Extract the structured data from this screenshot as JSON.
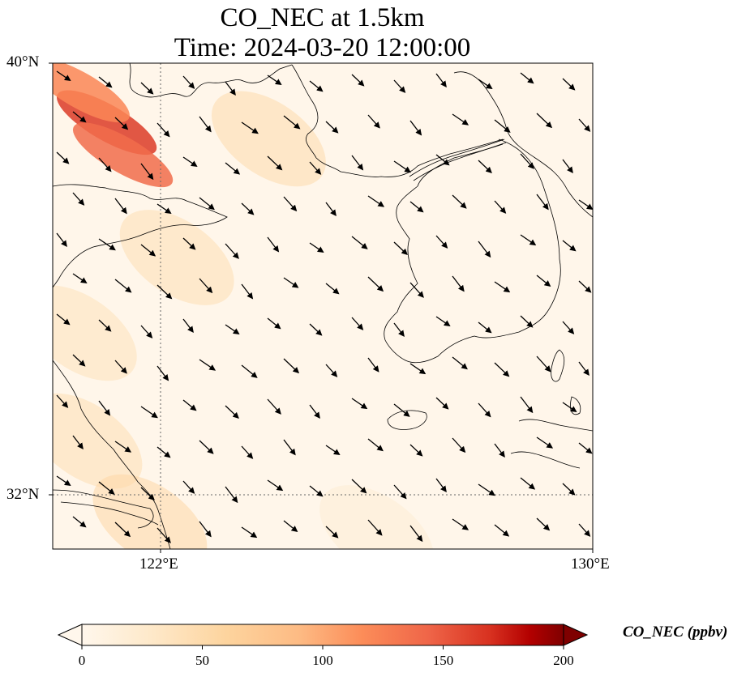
{
  "title": {
    "line1": "CO_NEC at 1.5km",
    "line2": "Time: 2024-03-20 12:00:00"
  },
  "axes": {
    "lat_labels": [
      "40°N",
      "32°N"
    ],
    "lon_labels": [
      "122°E",
      "130°E"
    ],
    "extent": {
      "lon_min": 120,
      "lon_max": 130,
      "lat_min": 31,
      "lat_max": 40
    },
    "gridlines": {
      "lons": [
        122
      ],
      "lats": [
        32
      ],
      "style": "dotted"
    }
  },
  "colorbar": {
    "label": "CO_NEC (ppbv)",
    "ticks": [
      "0",
      "50",
      "100",
      "150",
      "200"
    ],
    "range": [
      0,
      200
    ],
    "colormap": "OrRd",
    "extend": "both"
  },
  "chart_data": {
    "type": "heatmap",
    "variable": "CO_NEC",
    "units": "ppbv",
    "level": "1.5km",
    "time": "2024-03-20 12:00:00",
    "hotspots": [
      {
        "lon": 121.0,
        "lat": 38.9,
        "value": 165
      },
      {
        "lon": 120.5,
        "lat": 39.5,
        "value": 120
      },
      {
        "lon": 121.3,
        "lat": 38.3,
        "value": 140
      },
      {
        "lon": 124.0,
        "lat": 38.6,
        "value": 50
      },
      {
        "lon": 122.3,
        "lat": 36.4,
        "value": 45
      },
      {
        "lon": 120.5,
        "lat": 35.0,
        "value": 40
      },
      {
        "lon": 120.6,
        "lat": 33.0,
        "value": 45
      },
      {
        "lon": 121.8,
        "lat": 31.5,
        "value": 55
      },
      {
        "lon": 126.0,
        "lat": 31.3,
        "value": 20
      }
    ],
    "wind_vectors": "uniform field, flow predominantly toward the south-east (NW winds)"
  }
}
